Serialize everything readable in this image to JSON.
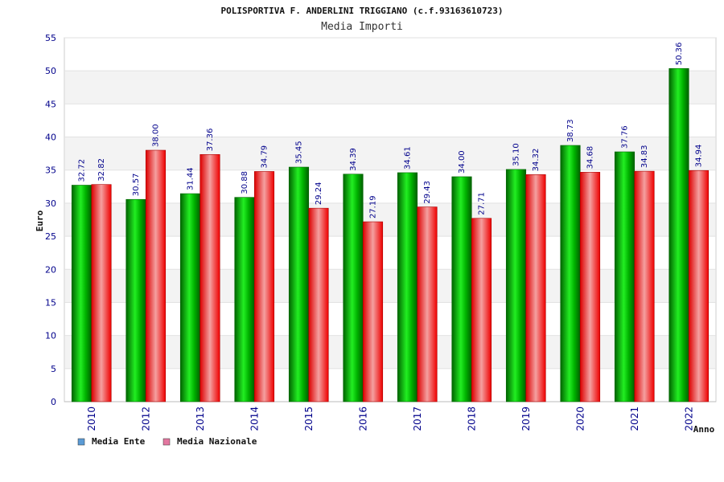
{
  "chart_data": {
    "type": "bar",
    "title": "POLISPORTIVA F. ANDERLINI TRIGGIANO (c.f.93163610723)",
    "subtitle": "Media Importi",
    "xlabel": "Anno",
    "ylabel": "Euro",
    "ylim": [
      0,
      55
    ],
    "ytick_step": 5,
    "grid": true,
    "legend_position": "bottom-left",
    "categories": [
      "2010",
      "2012",
      "2013",
      "2014",
      "2015",
      "2016",
      "2017",
      "2018",
      "2019",
      "2020",
      "2021",
      "2022"
    ],
    "series": [
      {
        "name": "Media Ente",
        "color": "#00cc00",
        "legend_color": "#5b9bd5",
        "values": [
          32.72,
          30.57,
          31.44,
          30.88,
          35.45,
          34.39,
          34.61,
          34.0,
          35.1,
          38.73,
          37.76,
          50.36
        ],
        "labels": [
          "32.72",
          "30.57",
          "31.44",
          "30.88",
          "35.45",
          "34.39",
          "34.61",
          "34.00",
          "35.10",
          "38.73",
          "37.76",
          "50.36"
        ]
      },
      {
        "name": "Media Nazionale",
        "color": "#ee1111",
        "legend_color": "#e377a0",
        "values": [
          32.82,
          38.0,
          37.36,
          34.79,
          29.24,
          27.19,
          29.43,
          27.71,
          34.32,
          34.68,
          34.83,
          34.94
        ],
        "labels": [
          "32.82",
          "38.00",
          "37.36",
          "34.79",
          "29.24",
          "27.19",
          "29.43",
          "27.71",
          "34.32",
          "34.68",
          "34.83",
          "34.94"
        ]
      }
    ]
  }
}
